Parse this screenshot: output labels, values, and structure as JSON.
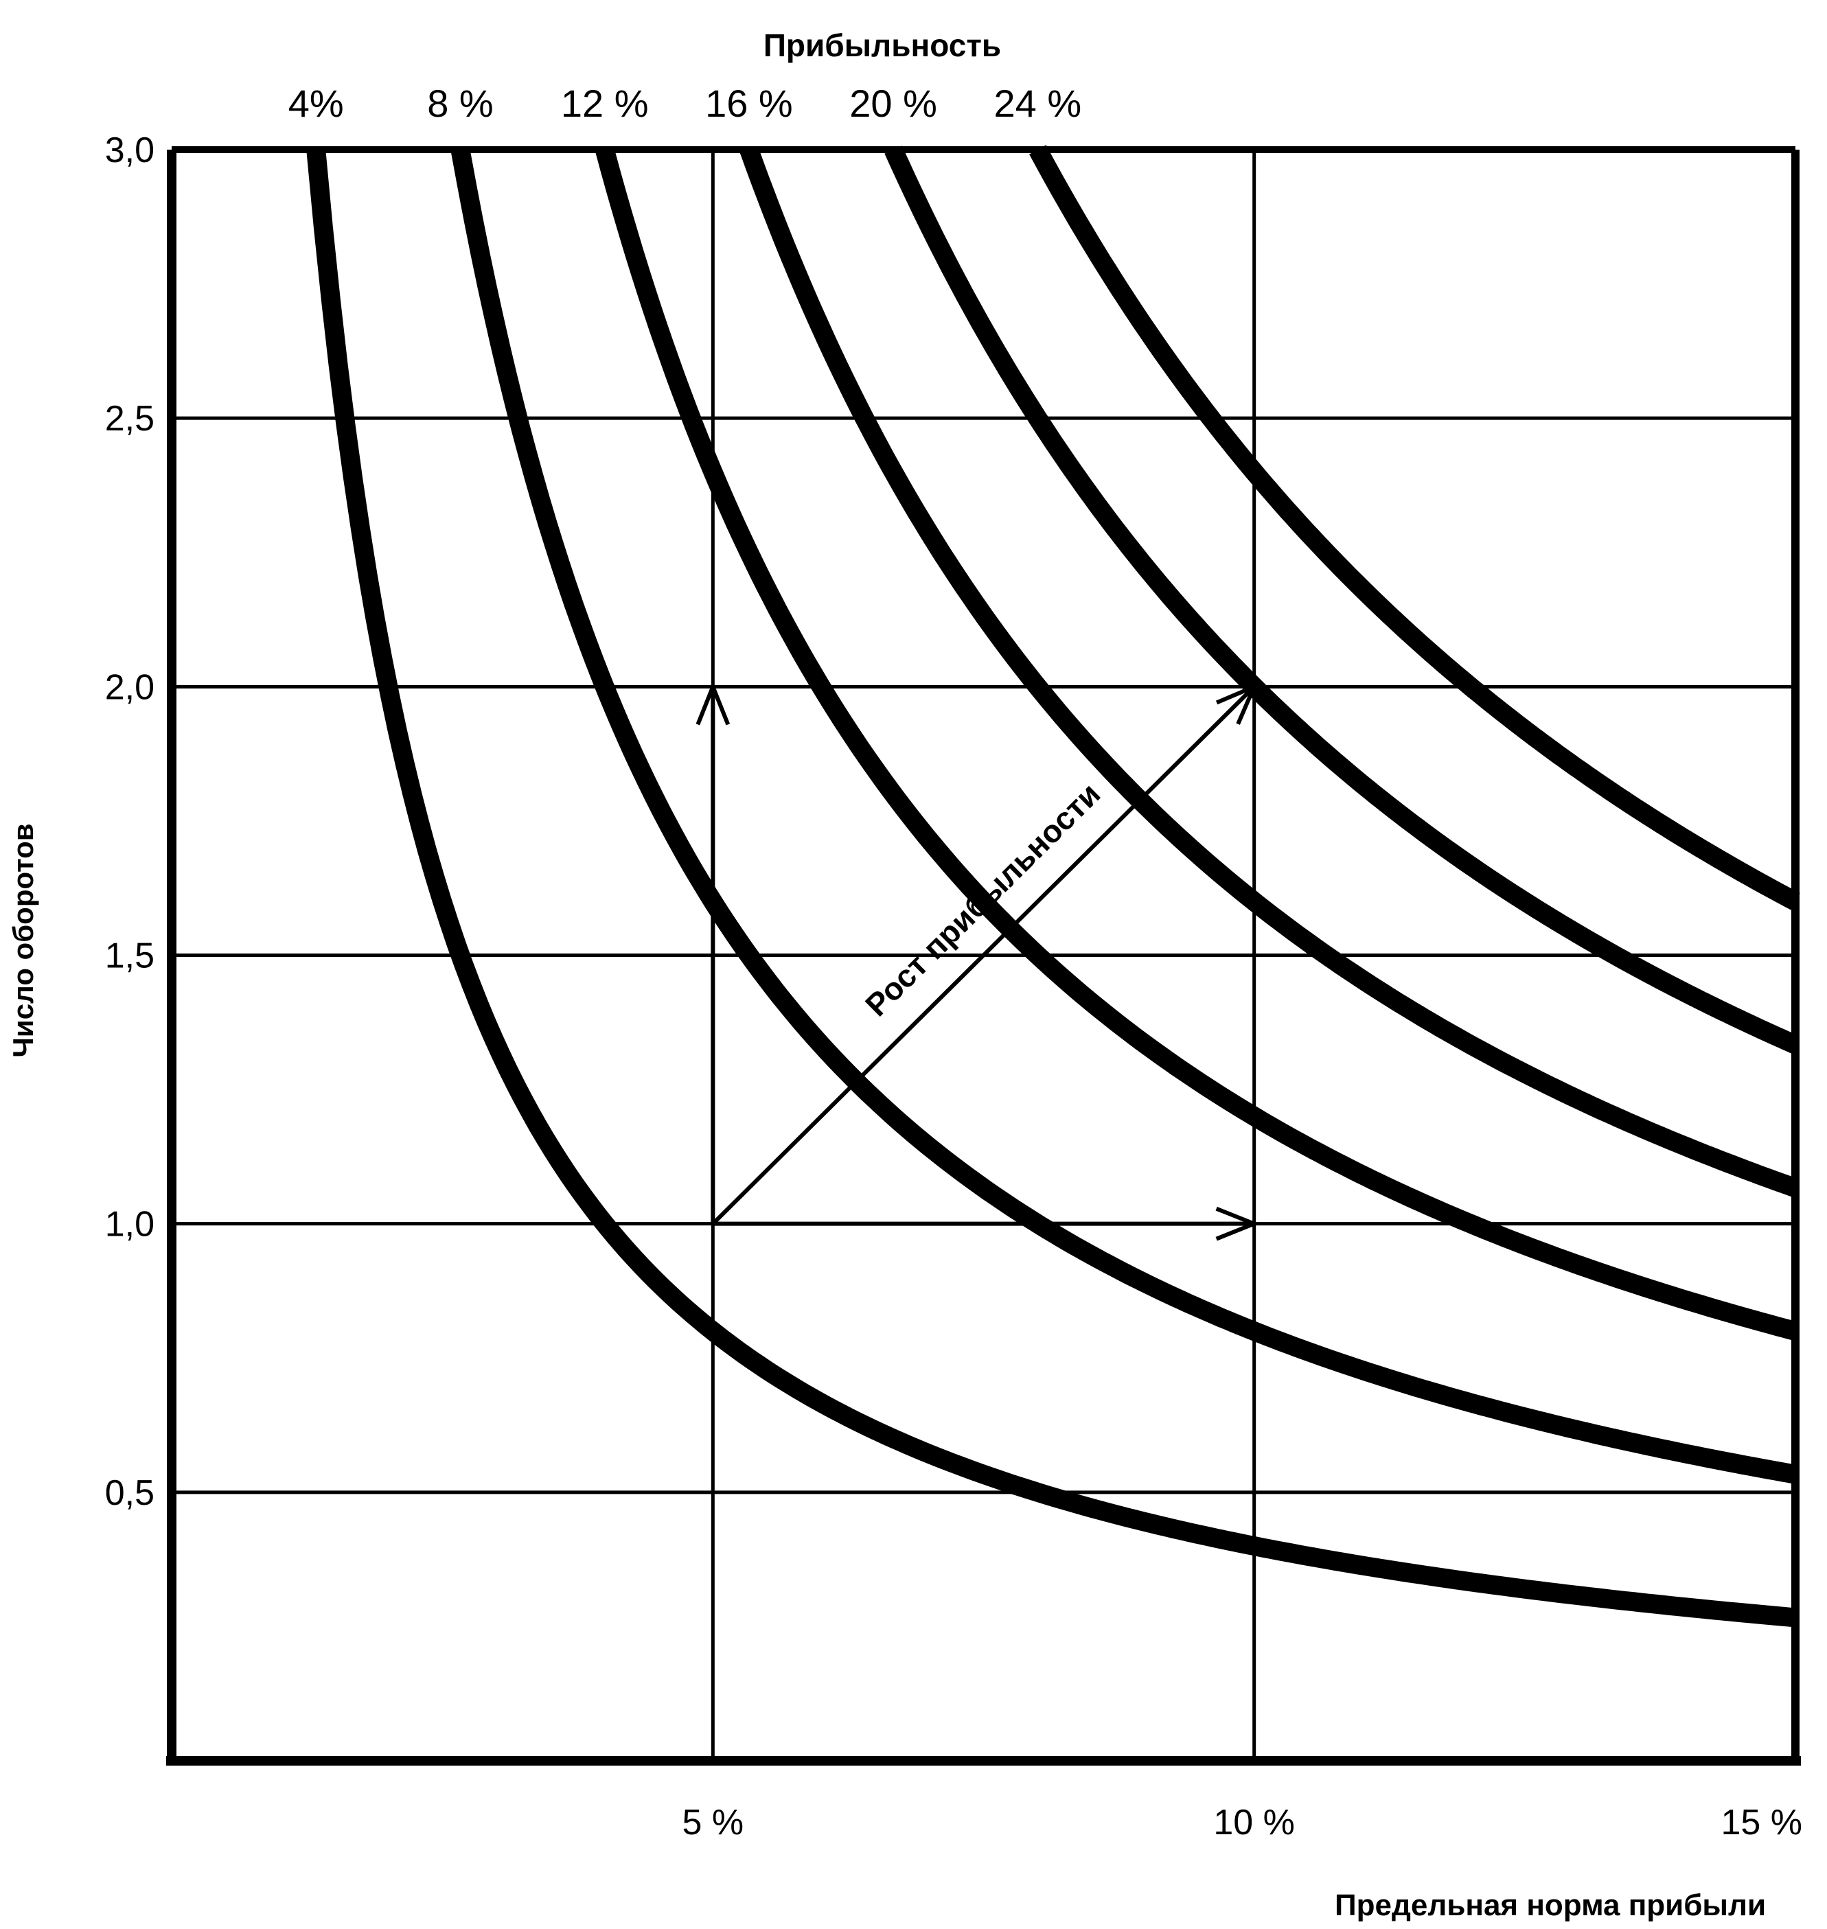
{
  "chart_data": {
    "type": "line",
    "title": "Прибыльность",
    "xlabel": "Предельная норма прибыли",
    "ylabel": "Число оборотов",
    "xlim": [
      0,
      15
    ],
    "ylim": [
      0,
      3.0
    ],
    "x_ticks": [
      {
        "value": 5,
        "label": "5 %"
      },
      {
        "value": 10,
        "label": "10 %"
      },
      {
        "value": 15,
        "label": "15 %"
      }
    ],
    "y_ticks": [
      {
        "value": 0.5,
        "label": "0,5"
      },
      {
        "value": 1.0,
        "label": "1,0"
      },
      {
        "value": 1.5,
        "label": "1,5"
      },
      {
        "value": 2.0,
        "label": "2,0"
      },
      {
        "value": 2.5,
        "label": "2,5"
      },
      {
        "value": 3.0,
        "label": "3,0"
      }
    ],
    "grid": true,
    "series": [
      {
        "name": "4%",
        "profitability": 4,
        "label": "4%"
      },
      {
        "name": "8%",
        "profitability": 8,
        "label": "8 %"
      },
      {
        "name": "12%",
        "profitability": 12,
        "label": "12 %"
      },
      {
        "name": "16%",
        "profitability": 16,
        "label": "16 %"
      },
      {
        "name": "20%",
        "profitability": 20,
        "label": "20 %"
      },
      {
        "name": "24%",
        "profitability": 24,
        "label": "24 %"
      }
    ],
    "annotations": [
      {
        "text": "Рост прибыльности",
        "from": [
          5,
          1.0
        ],
        "to": [
          10,
          2.0
        ]
      },
      {
        "text": "",
        "from": [
          5,
          1.0
        ],
        "to": [
          5,
          2.0
        ]
      },
      {
        "text": "",
        "from": [
          5,
          1.0
        ],
        "to": [
          10,
          1.0
        ]
      }
    ]
  }
}
